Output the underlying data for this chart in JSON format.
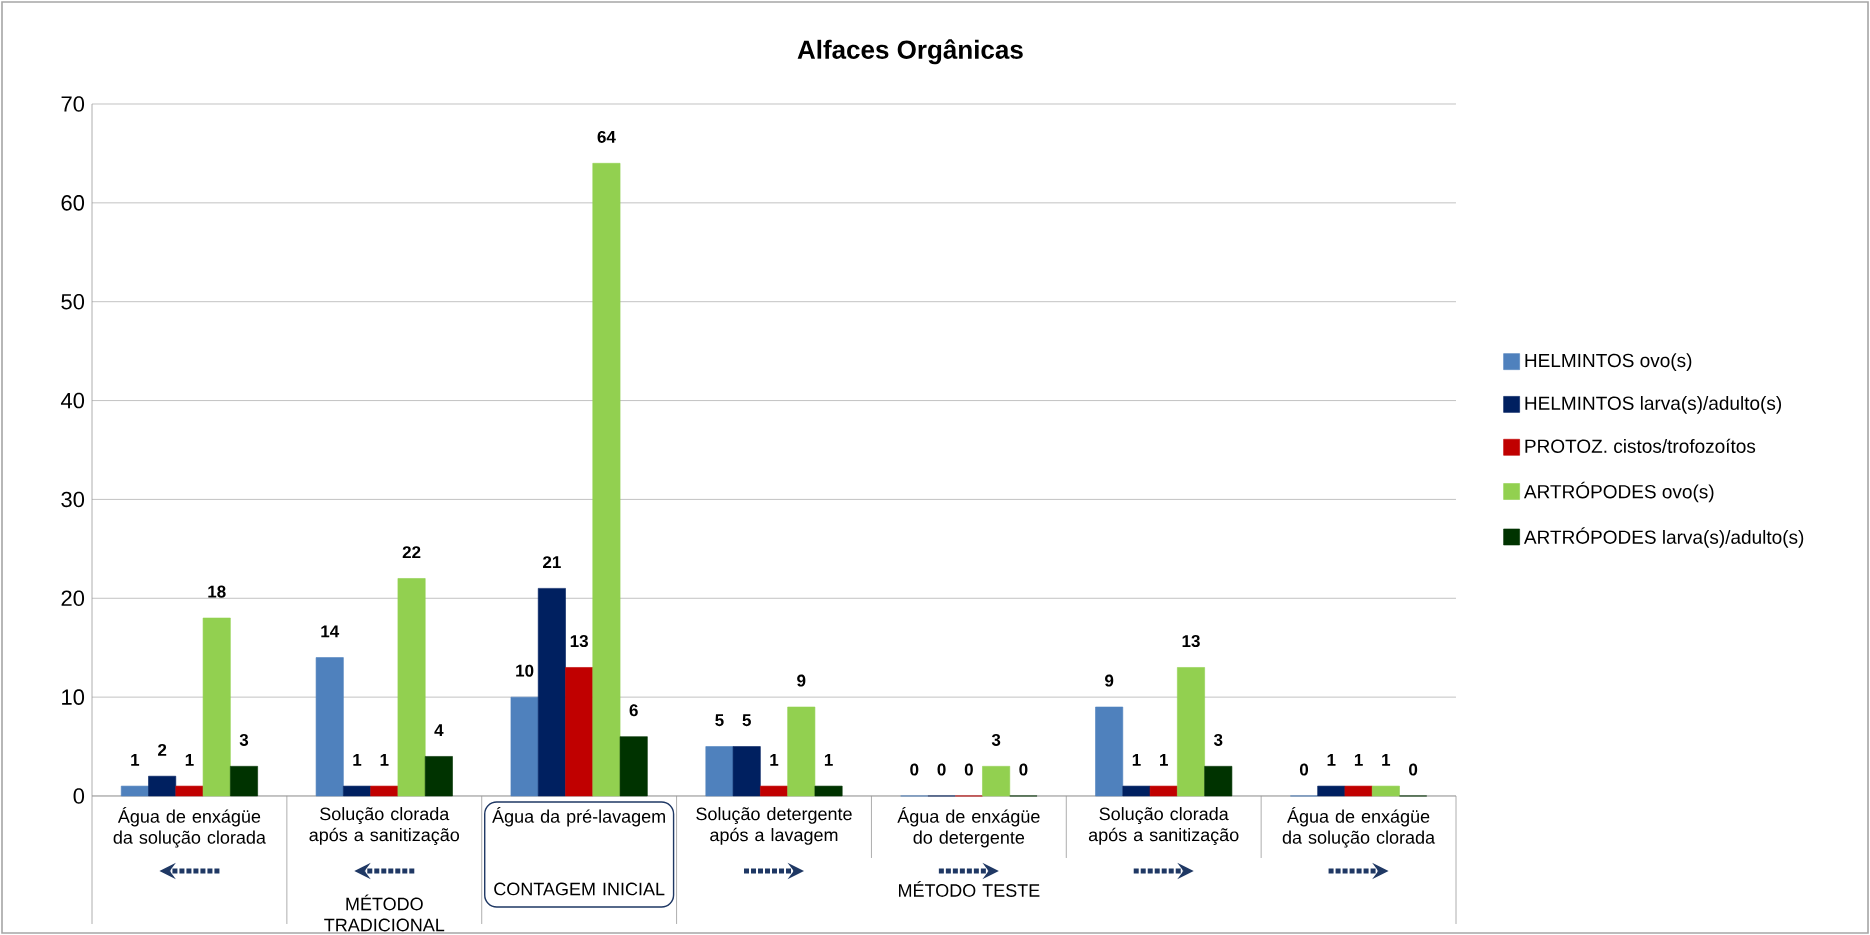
{
  "chart_data": {
    "type": "bar",
    "title": "Alfaces Orgânicas",
    "categories": [
      "Água de enxágüe da solução clorada",
      "Solução clorada após a sanitização",
      "Água da pré-lavagem",
      "Solução detergente após a lavagem",
      "Água de enxágüe do detergente",
      "Solução clorada após a sanitização",
      "Água de enxágüe da solução clorada"
    ],
    "series": [
      {
        "name": "HELMINTOS ovo(s)",
        "color": "#4f81bd",
        "values": [
          1,
          14,
          10,
          5,
          0,
          9,
          0
        ]
      },
      {
        "name": "HELMINTOS larva(s)/adulto(s)",
        "color": "#002060",
        "values": [
          2,
          1,
          21,
          5,
          0,
          1,
          1
        ]
      },
      {
        "name": "PROTOZ. cistos/trofozoítos",
        "color": "#c00000",
        "values": [
          1,
          1,
          13,
          1,
          0,
          1,
          1
        ]
      },
      {
        "name": "ARTRÓPODES ovo(s)",
        "color": "#92d050",
        "values": [
          18,
          22,
          64,
          9,
          3,
          13,
          1
        ]
      },
      {
        "name": "ARTRÓPODES larva(s)/adulto(s)",
        "color": "#003300",
        "values": [
          3,
          4,
          6,
          1,
          0,
          3,
          0
        ]
      }
    ],
    "annotations": [
      "MÉTODO TRADICIONAL",
      "CONTAGEM INICIAL",
      "MÉTODO TESTE"
    ],
    "ylim": [
      0,
      70
    ],
    "yticks": [
      0,
      10,
      20,
      30,
      40,
      50,
      60,
      70
    ],
    "grid": "y",
    "legend": "right",
    "data_labels": true
  }
}
